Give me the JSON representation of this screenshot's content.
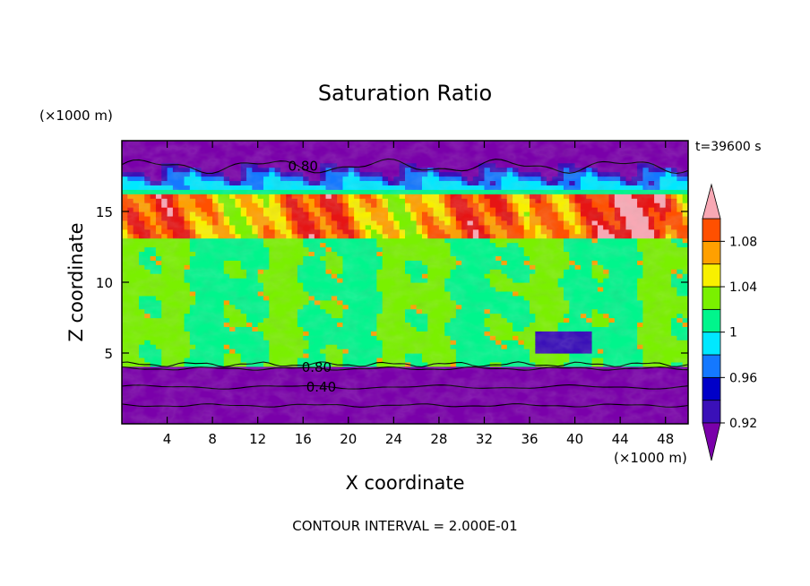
{
  "chart_data": {
    "type": "heatmap",
    "title": "Saturation Ratio",
    "xlabel": "X coordinate",
    "ylabel": "Z coordinate",
    "x_unit": "(×1000 m)",
    "y_unit": "(×1000 m)",
    "time_label": "t=39600 s",
    "footer": "CONTOUR INTERVAL = 2.000E-01",
    "xlim": [
      0,
      50
    ],
    "ylim": [
      0,
      20
    ],
    "x_ticks": [
      4,
      8,
      12,
      16,
      20,
      24,
      28,
      32,
      36,
      40,
      44,
      48
    ],
    "y_ticks": [
      5,
      10,
      15
    ],
    "contour_labels": [
      {
        "text": "0.80",
        "x": 16,
        "z": 18.2
      },
      {
        "text": "0.80",
        "x": 17.2,
        "z": 4.0
      },
      {
        "text": "0.40",
        "x": 17.6,
        "z": 2.6
      }
    ],
    "colorbar": {
      "levels": [
        0.92,
        0.94,
        0.96,
        0.98,
        1.0,
        1.02,
        1.04,
        1.06,
        1.08,
        1.1
      ],
      "tick_labels": [
        "0.92",
        "0.96",
        "1",
        "1.04",
        "1.08"
      ],
      "tick_values": [
        0.92,
        0.96,
        1.0,
        1.04,
        1.08
      ],
      "colors": [
        "#7a00aa",
        "#3a10b8",
        "#0000c8",
        "#1478ff",
        "#00e8ff",
        "#00f58c",
        "#7af000",
        "#f8f000",
        "#ffa000",
        "#ff5000",
        "#e61414",
        "#f8a8b4"
      ]
    }
  }
}
